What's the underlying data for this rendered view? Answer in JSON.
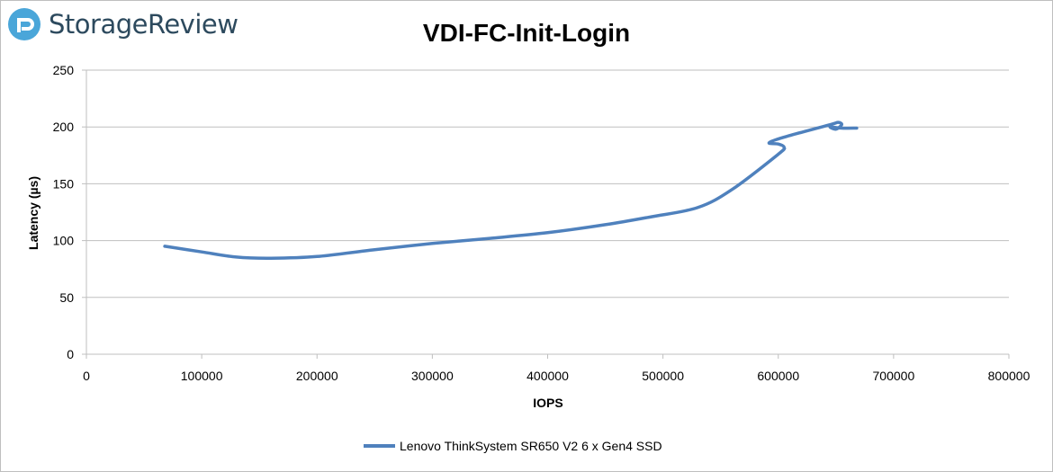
{
  "brand": {
    "name": "StorageReview",
    "logo_icon": "storagereview-logo-icon",
    "color": "#2d4a5e",
    "accent": "#4aa6d9"
  },
  "chart_data": {
    "type": "line",
    "title": "VDI-FC-Init-Login",
    "xlabel": "IOPS",
    "ylabel": "Latency (µs)",
    "xlim": [
      0,
      800000
    ],
    "ylim": [
      0,
      250
    ],
    "x_ticks": [
      "0",
      "100000",
      "200000",
      "300000",
      "400000",
      "500000",
      "600000",
      "700000",
      "800000"
    ],
    "y_ticks": [
      "0",
      "50",
      "100",
      "150",
      "200",
      "250"
    ],
    "grid": "horizontal",
    "legend": "bottom",
    "series": [
      {
        "name": "Lenovo ThinkSystem SR650 V2 6 x Gen4 SSD",
        "color": "#4f81bd",
        "points": [
          [
            68000,
            95
          ],
          [
            100000,
            90
          ],
          [
            130000,
            85.5
          ],
          [
            160000,
            84.5
          ],
          [
            200000,
            86
          ],
          [
            250000,
            92
          ],
          [
            300000,
            97.5
          ],
          [
            350000,
            102
          ],
          [
            400000,
            107
          ],
          [
            450000,
            114
          ],
          [
            490000,
            121
          ],
          [
            530000,
            129
          ],
          [
            560000,
            145
          ],
          [
            600000,
            176
          ],
          [
            605000,
            182
          ],
          [
            600000,
            185
          ],
          [
            592000,
            186
          ],
          [
            605000,
            191
          ],
          [
            645000,
            202
          ],
          [
            652000,
            204
          ],
          [
            655000,
            202
          ],
          [
            650000,
            198
          ],
          [
            645000,
            200
          ],
          [
            655000,
            199
          ],
          [
            668000,
            199
          ]
        ]
      }
    ]
  }
}
